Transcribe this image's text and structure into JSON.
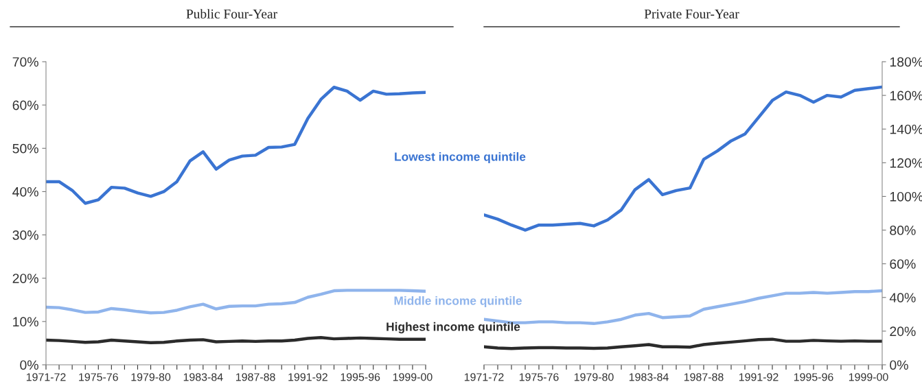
{
  "chart_data": [
    {
      "type": "line",
      "title": "Public Four-Year",
      "categories": [
        "1971-72",
        null,
        null,
        null,
        "1975-76",
        null,
        null,
        null,
        "1979-80",
        null,
        null,
        null,
        "1983-84",
        null,
        null,
        null,
        "1987-88",
        null,
        null,
        null,
        "1991-92",
        null,
        null,
        null,
        "1995-96",
        null,
        null,
        null,
        "1999-00",
        null
      ],
      "series": [
        {
          "name": "Lowest income quintile",
          "color": "#3a74d2",
          "values": [
            42.3,
            42.3,
            40.3,
            37.3,
            38.1,
            41.0,
            40.8,
            39.7,
            38.9,
            40.0,
            42.3,
            47.1,
            49.2,
            45.2,
            47.3,
            48.2,
            48.4,
            50.2,
            50.3,
            50.9,
            56.9,
            61.3,
            64.1,
            63.2,
            61.1,
            63.2,
            62.5,
            62.6,
            62.8,
            62.9
          ]
        },
        {
          "name": "Middle income quintile",
          "color": "#8fb4ec",
          "values": [
            13.3,
            13.2,
            12.7,
            12.1,
            12.2,
            13.0,
            12.7,
            12.3,
            12.0,
            12.1,
            12.6,
            13.4,
            14.0,
            12.9,
            13.5,
            13.6,
            13.6,
            14.0,
            14.1,
            14.4,
            15.6,
            16.3,
            17.1,
            17.2,
            17.2,
            17.2,
            17.2,
            17.2,
            17.1,
            17.0
          ]
        },
        {
          "name": "Highest income quintile",
          "color": "#2b2b2b",
          "values": [
            5.7,
            5.6,
            5.4,
            5.2,
            5.3,
            5.7,
            5.5,
            5.3,
            5.1,
            5.2,
            5.5,
            5.7,
            5.8,
            5.3,
            5.4,
            5.5,
            5.4,
            5.5,
            5.5,
            5.7,
            6.1,
            6.3,
            6.0,
            6.1,
            6.2,
            6.1,
            6.0,
            5.9,
            5.9,
            5.9
          ]
        }
      ],
      "ylim": [
        0,
        70
      ],
      "yticks": [
        {
          "value": 0,
          "label": "0%"
        },
        {
          "value": 10,
          "label": "10%"
        },
        {
          "value": 20,
          "label": "20%"
        },
        {
          "value": 30,
          "label": "30%"
        },
        {
          "value": 40,
          "label": "40%"
        },
        {
          "value": 50,
          "label": "50%"
        },
        {
          "value": 60,
          "label": "60%"
        },
        {
          "value": 70,
          "label": "70%"
        }
      ],
      "grid": false,
      "legend": false
    },
    {
      "type": "line",
      "title": "Private Four-Year",
      "categories": [
        "1971-72",
        null,
        null,
        null,
        "1975-76",
        null,
        null,
        null,
        "1979-80",
        null,
        null,
        null,
        "1983-84",
        null,
        null,
        null,
        "1987-88",
        null,
        null,
        null,
        "1991-92",
        null,
        null,
        null,
        "1995-96",
        null,
        null,
        null,
        "1999-00",
        null
      ],
      "series": [
        {
          "color": "#3a74d2",
          "values": [
            89,
            86.5,
            83,
            80,
            83,
            83,
            83.5,
            84,
            82.5,
            86,
            92,
            104,
            110,
            101,
            103.5,
            105,
            122,
            127,
            133,
            137,
            147,
            157,
            162,
            160,
            156,
            160,
            159,
            163,
            164,
            165
          ]
        },
        {
          "color": "#8fb4ec",
          "values": [
            27,
            26,
            25,
            25,
            25.5,
            25.5,
            25,
            25,
            24.5,
            25.5,
            27,
            29.5,
            30.5,
            28,
            28.5,
            29,
            33,
            34.5,
            36,
            37.5,
            39.5,
            41,
            42.5,
            42.5,
            43,
            42.5,
            43,
            43.5,
            43.5,
            44
          ]
        },
        {
          "color": "#2b2b2b",
          "values": [
            10.7,
            10,
            9.7,
            10,
            10.2,
            10.2,
            10,
            10,
            9.8,
            10,
            10.7,
            11.3,
            12,
            10.7,
            10.7,
            10.5,
            12,
            12.8,
            13.5,
            14.2,
            15,
            15.2,
            14,
            14,
            14.5,
            14.2,
            14,
            14.2,
            14,
            14
          ]
        }
      ],
      "ylim": [
        0,
        180
      ],
      "yticks": [
        {
          "value": 0,
          "label": "0%"
        },
        {
          "value": 20,
          "label": "20%"
        },
        {
          "value": 40,
          "label": "40%"
        },
        {
          "value": 60,
          "label": "60%"
        },
        {
          "value": 80,
          "label": "80%"
        },
        {
          "value": 100,
          "label": "100%"
        },
        {
          "value": 120,
          "label": "120%"
        },
        {
          "value": 140,
          "label": "140%"
        },
        {
          "value": 160,
          "label": "160%"
        },
        {
          "value": 180,
          "label": "180%"
        }
      ],
      "grid": false,
      "legend": false
    }
  ]
}
